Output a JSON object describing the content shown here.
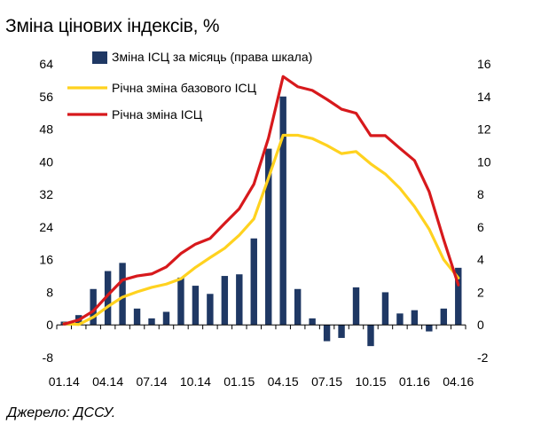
{
  "title": "Зміна цінових індексів, %",
  "source": "Джерело: ДССУ.",
  "colors": {
    "bar": "#1f3864",
    "core": "#ffd21f",
    "cpi": "#d7191c",
    "axis": "#000000"
  },
  "chart_data": {
    "type": "bar+line",
    "x": [
      "01.14",
      "02.14",
      "03.14",
      "04.14",
      "05.14",
      "06.14",
      "07.14",
      "08.14",
      "09.14",
      "10.14",
      "11.14",
      "12.14",
      "01.15",
      "02.15",
      "03.15",
      "04.15",
      "05.15",
      "06.15",
      "07.15",
      "08.15",
      "09.15",
      "10.15",
      "11.15",
      "12.15",
      "01.16",
      "02.16",
      "03.16",
      "04.16"
    ],
    "x_tick_labels": [
      "01.14",
      "04.14",
      "07.14",
      "10.14",
      "01.15",
      "04.15",
      "07.15",
      "10.15",
      "01.16",
      "04.16"
    ],
    "left_axis": {
      "min": -8,
      "max": 64,
      "ticks": [
        -8,
        0,
        8,
        16,
        24,
        32,
        40,
        48,
        56,
        64
      ]
    },
    "right_axis": {
      "min": -2,
      "max": 16,
      "ticks": [
        -2,
        0,
        2,
        4,
        6,
        8,
        10,
        12,
        14,
        16
      ]
    },
    "series": [
      {
        "name": "Зміна ІСЦ за місяць (права шкала)",
        "type": "bar",
        "axis": "right",
        "values": [
          0.2,
          0.6,
          2.2,
          3.3,
          3.8,
          1.0,
          0.4,
          0.8,
          2.9,
          2.4,
          1.9,
          3.0,
          3.1,
          5.3,
          10.8,
          14.0,
          2.2,
          0.4,
          -1.0,
          -0.8,
          2.3,
          -1.3,
          2.0,
          0.7,
          0.9,
          -0.4,
          1.0,
          3.5
        ]
      },
      {
        "name": "Річна зміна базового ІСЦ",
        "type": "line",
        "axis": "left",
        "values": [
          0.3,
          0.1,
          1.9,
          4.5,
          6.8,
          8.1,
          9.2,
          10.0,
          11.3,
          14.1,
          16.5,
          18.8,
          22.0,
          26.0,
          36.0,
          46.5,
          46.5,
          45.7,
          44.0,
          42.0,
          42.5,
          39.5,
          37.0,
          33.5,
          29.0,
          23.5,
          16.0,
          11.5
        ]
      },
      {
        "name": "Річна зміна ІСЦ",
        "type": "line",
        "axis": "left",
        "values": [
          0.2,
          1.2,
          3.4,
          7.3,
          11.0,
          12.0,
          12.5,
          14.2,
          17.5,
          19.8,
          21.2,
          24.9,
          28.5,
          34.5,
          45.8,
          60.9,
          58.4,
          57.5,
          55.3,
          52.9,
          51.9,
          46.4,
          46.4,
          43.3,
          40.3,
          32.7,
          20.9,
          9.8
        ]
      }
    ],
    "legend_position": "top-left"
  }
}
